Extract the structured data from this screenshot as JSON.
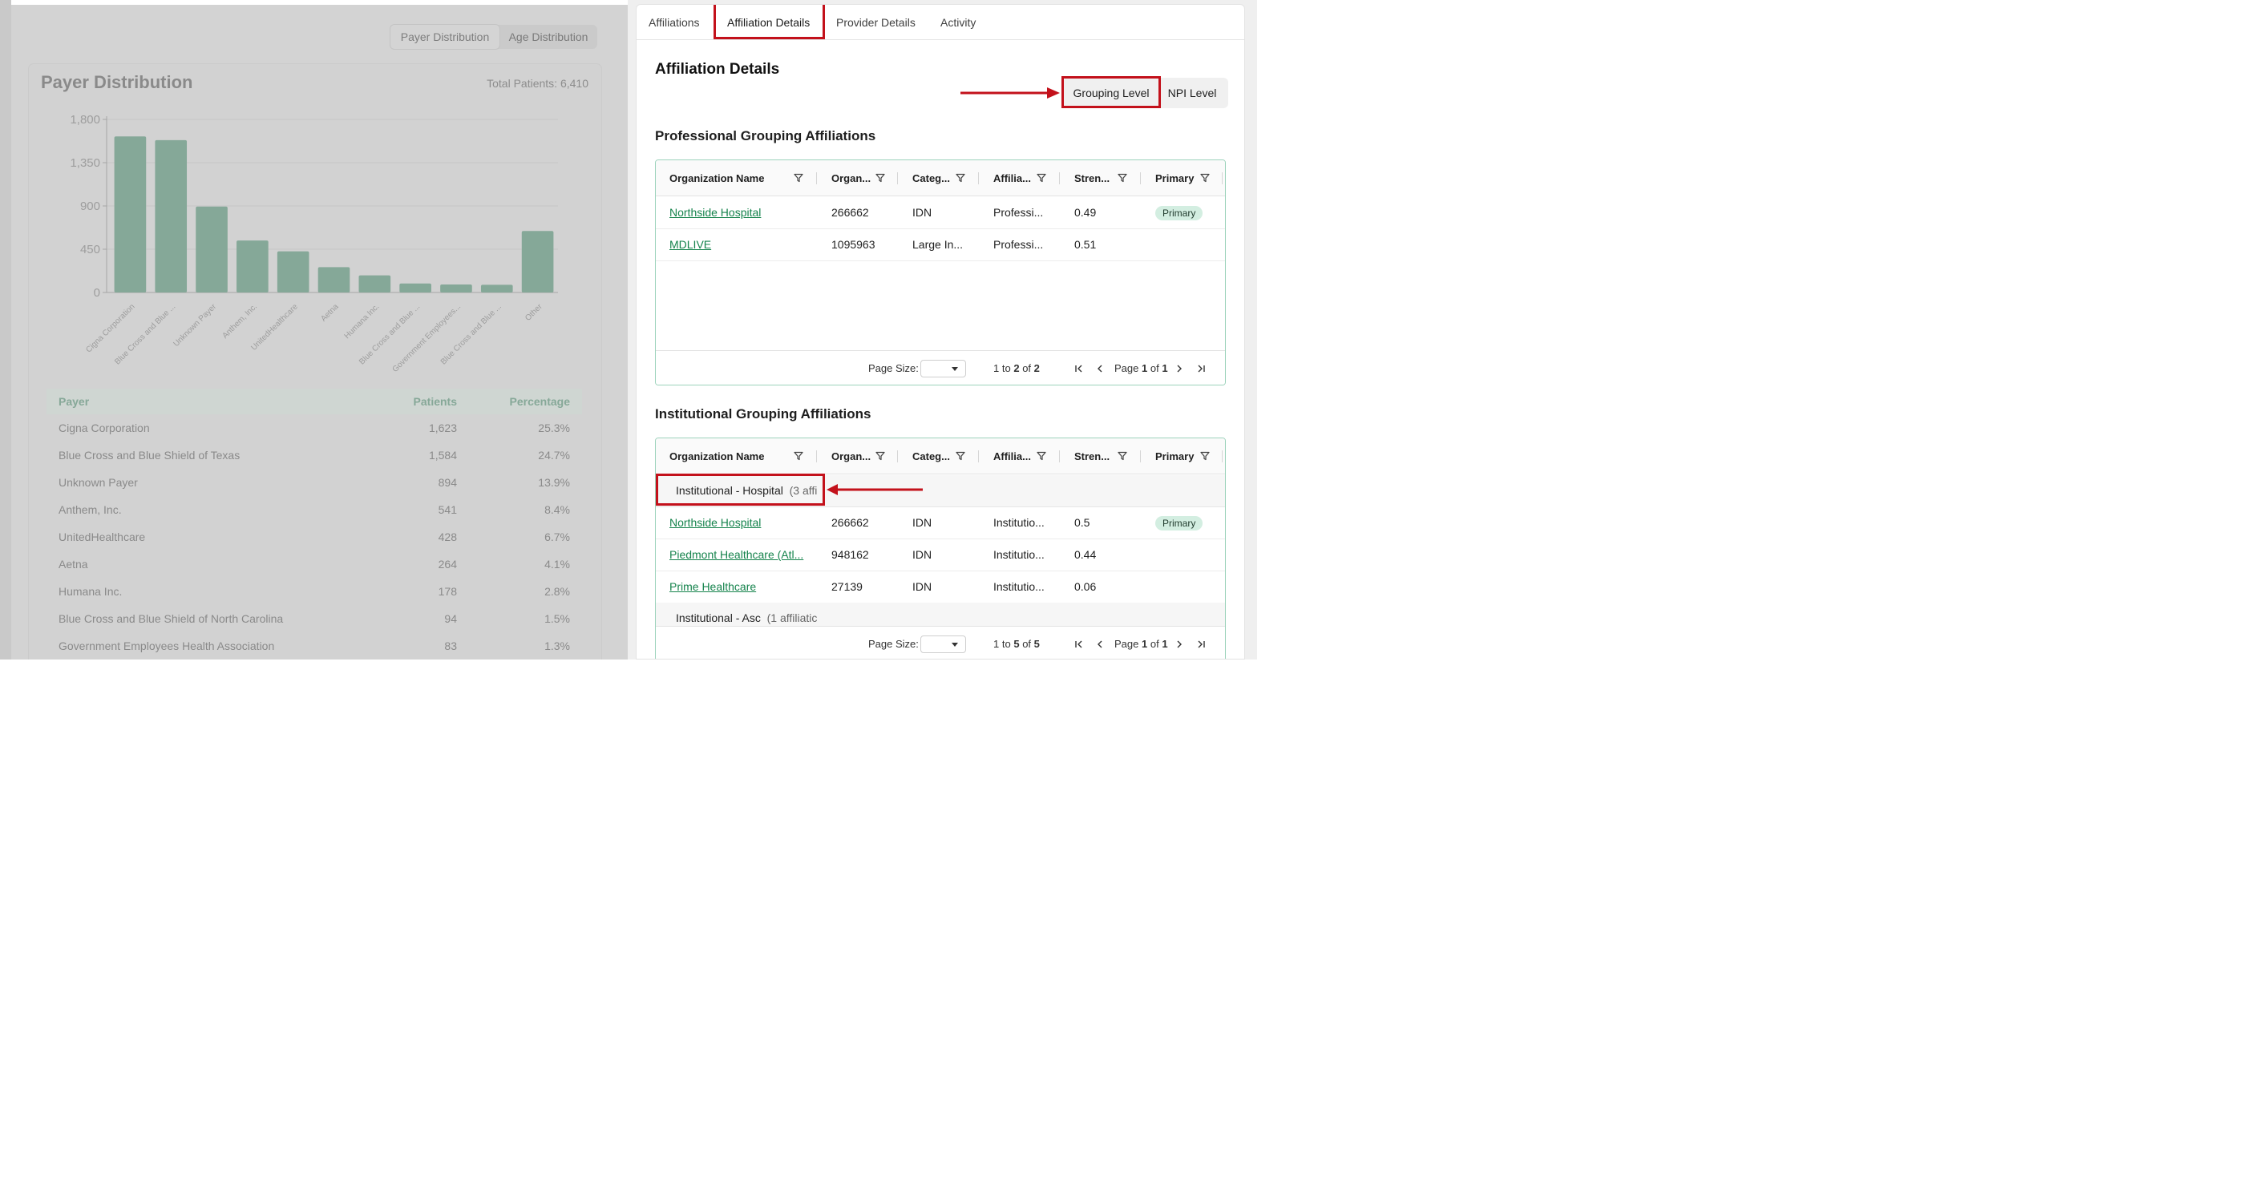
{
  "left": {
    "segmented": {
      "tabs": [
        "Payer Distribution",
        "Age Distribution"
      ],
      "active": "Payer Distribution"
    },
    "title": "Payer Distribution",
    "total_label": "Total Patients: 6,410",
    "table": {
      "headers": [
        "Payer",
        "Patients",
        "Percentage"
      ],
      "rows": [
        [
          "Cigna Corporation",
          "1,623",
          "25.3%"
        ],
        [
          "Blue Cross and Blue Shield of Texas",
          "1,584",
          "24.7%"
        ],
        [
          "Unknown Payer",
          "894",
          "13.9%"
        ],
        [
          "Anthem, Inc.",
          "541",
          "8.4%"
        ],
        [
          "UnitedHealthcare",
          "428",
          "6.7%"
        ],
        [
          "Aetna",
          "264",
          "4.1%"
        ],
        [
          "Humana Inc.",
          "178",
          "2.8%"
        ],
        [
          "Blue Cross and Blue Shield of North Carolina",
          "94",
          "1.5%"
        ],
        [
          "Government Employees Health Association",
          "83",
          "1.3%"
        ]
      ]
    }
  },
  "chart_data": {
    "type": "bar",
    "title": "Payer Distribution",
    "categories": [
      "Cigna Corporation",
      "Blue Cross and Blue ...",
      "Unknown Payer",
      "Anthem, Inc.",
      "UnitedHealthcare",
      "Aetna",
      "Humana Inc.",
      "Blue Cross and Blue ...",
      "Government Employees...",
      "Blue Cross and Blue ...",
      "Other"
    ],
    "values": [
      1623,
      1584,
      894,
      541,
      428,
      264,
      178,
      94,
      83,
      80,
      640
    ],
    "yticks": [
      "0",
      "450",
      "900",
      "1,350",
      "1,800"
    ],
    "ylim": [
      0,
      1800
    ],
    "grid": true,
    "bar_color": "#85a898"
  },
  "right": {
    "tabs": [
      "Affiliations",
      "Affiliation Details",
      "Provider Details",
      "Activity"
    ],
    "active_tab": "Affiliation Details",
    "title": "Affiliation Details",
    "level_toggle": [
      "Grouping Level",
      "NPI Level"
    ],
    "active_level": "Grouping Level",
    "columns": [
      "Organization Name",
      "Organ...",
      "Categ...",
      "Affilia...",
      "Stren...",
      "Primary"
    ],
    "professional": {
      "title": "Professional Grouping Affiliations",
      "rows": [
        {
          "name": "Northside Hospital",
          "org": "266662",
          "cat": "IDN",
          "aff": "Professi...",
          "str": "0.49",
          "primary": "Primary"
        },
        {
          "name": "MDLIVE",
          "org": "1095963",
          "cat": "Large In...",
          "aff": "Professi...",
          "str": "0.51",
          "primary": ""
        }
      ],
      "footer": {
        "page_size_label": "Page Size:",
        "range_from": "1",
        "range_to": "2",
        "range_total": "2",
        "page_label": "Page",
        "page": "1",
        "page_total": "1",
        "to_word": "to",
        "of_word": "of"
      }
    },
    "institutional": {
      "title": "Institutional Grouping Affiliations",
      "groups": [
        {
          "label": "Institutional - Hospital",
          "count": "(3 affi"
        },
        {
          "label": "Institutional - Asc",
          "count": "(1 affiliatic"
        }
      ],
      "rows": [
        {
          "name": "Northside Hospital",
          "org": "266662",
          "cat": "IDN",
          "aff": "Institutio...",
          "str": "0.5",
          "primary": "Primary"
        },
        {
          "name": "Piedmont Healthcare (Atl...",
          "org": "948162",
          "cat": "IDN",
          "aff": "Institutio...",
          "str": "0.44",
          "primary": ""
        },
        {
          "name": "Prime Healthcare",
          "org": "27139",
          "cat": "IDN",
          "aff": "Institutio...",
          "str": "0.06",
          "primary": ""
        }
      ],
      "footer": {
        "page_size_label": "Page Size:",
        "range_from": "1",
        "range_to": "5",
        "range_total": "5",
        "page_label": "Page",
        "page": "1",
        "page_total": "1",
        "to_word": "to",
        "of_word": "of"
      }
    },
    "colors": {
      "highlight": "#c3111b",
      "link": "#15834c",
      "badge_bg": "#d3eee1",
      "grid_border": "#9dd3bc"
    }
  }
}
